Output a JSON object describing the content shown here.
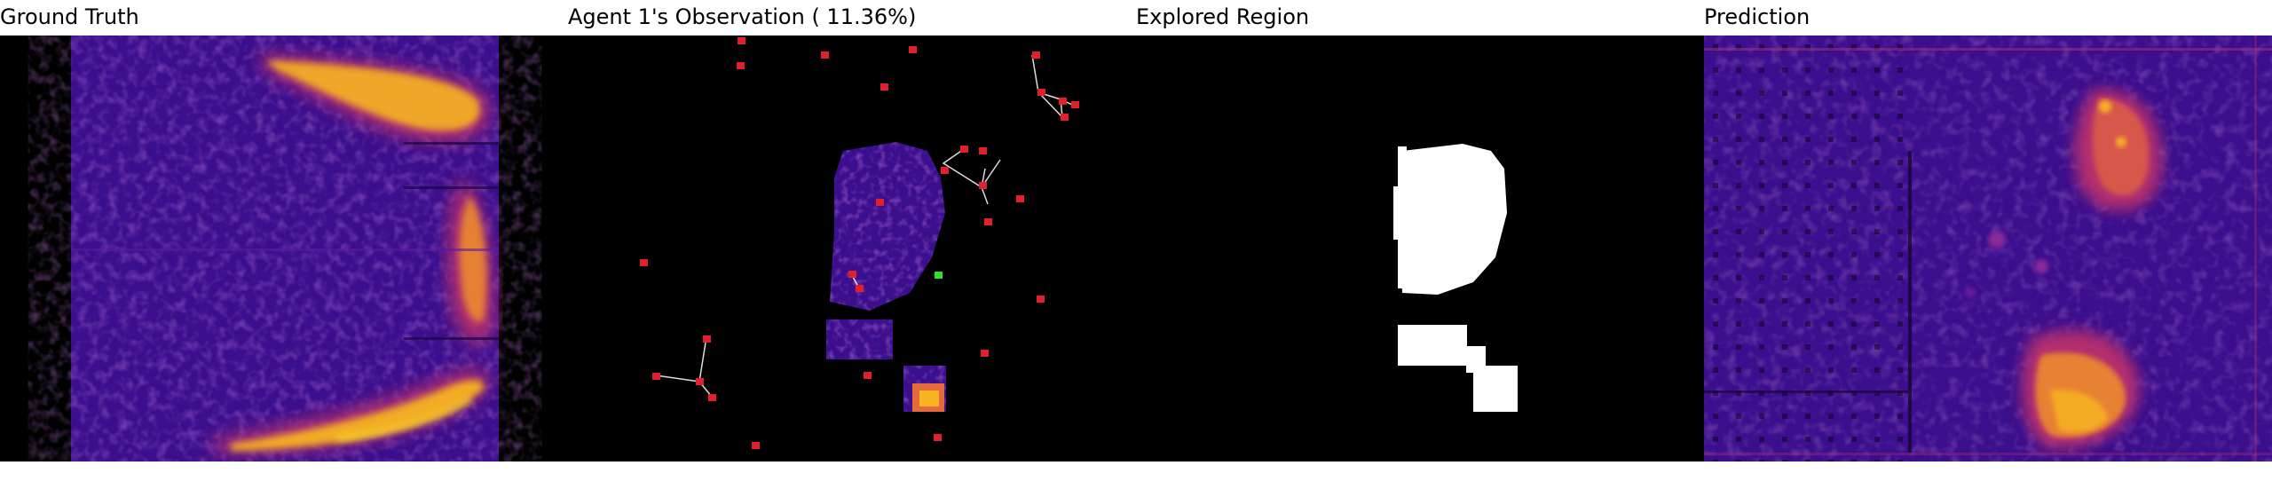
{
  "panels": {
    "ground_truth": {
      "title": "Ground Truth"
    },
    "observation": {
      "title": "Agent 1's Observation ( 11.36%)",
      "coverage_percent": 11.36
    },
    "explored": {
      "title": "Explored Region"
    },
    "prediction": {
      "title": "Prediction"
    }
  },
  "colors": {
    "background_dark": "#000000",
    "heat_low": "#3a0e8c",
    "heat_mid": "#b42e6e",
    "heat_high": "#f7b321",
    "heat_peak": "#fde725",
    "agent_marker": "#e0202a",
    "self_marker": "#33dd33",
    "link_line": "#dddddd",
    "explored_fill": "#ffffff"
  },
  "icons": {
    "agent_marker": "red-square-marker",
    "self_marker": "green-square-marker"
  }
}
